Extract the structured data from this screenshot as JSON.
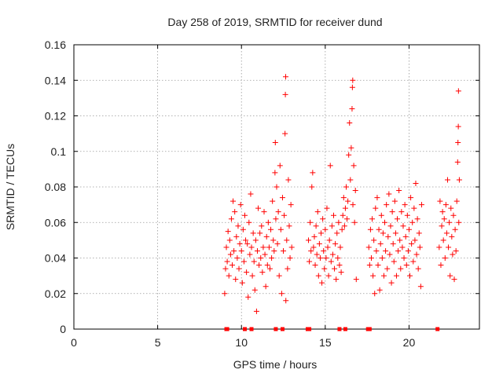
{
  "chart_data": {
    "type": "scatter",
    "title": "Day 258 of 2019, SRMTID for receiver dund",
    "xlabel": "GPS time / hours",
    "ylabel": "SRMTID / TECUs",
    "xlim": [
      0,
      24.2
    ],
    "ylim": [
      0,
      0.16
    ],
    "x_ticks": [
      0,
      5,
      10,
      15,
      20
    ],
    "x_tick_labels": [
      "0",
      "5",
      "10",
      "15",
      "20"
    ],
    "y_ticks": [
      0,
      0.02,
      0.04,
      0.06,
      0.08,
      0.1,
      0.12,
      0.14,
      0.16
    ],
    "y_tick_labels": [
      "0",
      "0.02",
      "0.04",
      "0.06",
      "0.08",
      "0.1",
      "0.12",
      "0.14",
      "0.16"
    ],
    "grid": true,
    "marker": "plus",
    "color": "#ff0000",
    "series": [
      {
        "name": "SRMTID",
        "points": [
          [
            9.0,
            0.02
          ],
          [
            9.05,
            0.034
          ],
          [
            9.1,
            0.046
          ],
          [
            9.15,
            0.038
          ],
          [
            9.2,
            0.055
          ],
          [
            9.25,
            0.03
          ],
          [
            9.3,
            0.05
          ],
          [
            9.35,
            0.042
          ],
          [
            9.4,
            0.062
          ],
          [
            9.45,
            0.036
          ],
          [
            9.5,
            0.072
          ],
          [
            9.55,
            0.044
          ],
          [
            9.6,
            0.066
          ],
          [
            9.65,
            0.028
          ],
          [
            9.7,
            0.052
          ],
          [
            9.75,
            0.04
          ],
          [
            9.8,
            0.058
          ],
          [
            9.85,
            0.034
          ],
          [
            9.9,
            0.048
          ],
          [
            9.95,
            0.07
          ],
          [
            10.0,
            0.044
          ],
          [
            10.05,
            0.026
          ],
          [
            10.1,
            0.056
          ],
          [
            10.15,
            0.038
          ],
          [
            10.2,
            0.064
          ],
          [
            10.25,
            0.05
          ],
          [
            10.3,
            0.032
          ],
          [
            10.35,
            0.048
          ],
          [
            10.4,
            0.018
          ],
          [
            10.45,
            0.06
          ],
          [
            10.5,
            0.042
          ],
          [
            10.55,
            0.076
          ],
          [
            10.6,
            0.046
          ],
          [
            10.65,
            0.03
          ],
          [
            10.7,
            0.054
          ],
          [
            10.75,
            0.038
          ],
          [
            10.8,
            0.022
          ],
          [
            10.85,
            0.05
          ],
          [
            10.9,
            0.01
          ],
          [
            10.95,
            0.044
          ],
          [
            11.0,
            0.068
          ],
          [
            11.05,
            0.036
          ],
          [
            11.1,
            0.054
          ],
          [
            11.15,
            0.04
          ],
          [
            11.2,
            0.058
          ],
          [
            11.25,
            0.032
          ],
          [
            11.3,
            0.046
          ],
          [
            11.35,
            0.066
          ],
          [
            11.4,
            0.042
          ],
          [
            11.45,
            0.024
          ],
          [
            11.5,
            0.052
          ],
          [
            11.55,
            0.036
          ],
          [
            11.6,
            0.06
          ],
          [
            11.65,
            0.046
          ],
          [
            11.7,
            0.034
          ],
          [
            11.75,
            0.056
          ],
          [
            11.8,
            0.04
          ],
          [
            11.85,
            0.072
          ],
          [
            11.9,
            0.05
          ],
          [
            11.95,
            0.044
          ],
          [
            12.0,
            0.088
          ],
          [
            12.02,
            0.105
          ],
          [
            12.05,
            0.062
          ],
          [
            12.1,
            0.08
          ],
          [
            12.15,
            0.048
          ],
          [
            12.2,
            0.066
          ],
          [
            12.25,
            0.03
          ],
          [
            12.3,
            0.092
          ],
          [
            12.35,
            0.056
          ],
          [
            12.4,
            0.02
          ],
          [
            12.45,
            0.074
          ],
          [
            12.5,
            0.044
          ],
          [
            12.55,
            0.064
          ],
          [
            12.6,
            0.11
          ],
          [
            12.62,
            0.132
          ],
          [
            12.64,
            0.142
          ],
          [
            12.65,
            0.016
          ],
          [
            12.7,
            0.05
          ],
          [
            12.75,
            0.034
          ],
          [
            12.8,
            0.084
          ],
          [
            12.85,
            0.058
          ],
          [
            12.9,
            0.04
          ],
          [
            12.95,
            0.07
          ],
          [
            13.0,
            0.046
          ],
          [
            14.0,
            0.05
          ],
          [
            14.05,
            0.038
          ],
          [
            14.1,
            0.06
          ],
          [
            14.15,
            0.044
          ],
          [
            14.2,
            0.08
          ],
          [
            14.25,
            0.088
          ],
          [
            14.3,
            0.046
          ],
          [
            14.35,
            0.052
          ],
          [
            14.4,
            0.036
          ],
          [
            14.45,
            0.058
          ],
          [
            14.5,
            0.042
          ],
          [
            14.55,
            0.066
          ],
          [
            14.6,
            0.03
          ],
          [
            14.65,
            0.048
          ],
          [
            14.7,
            0.04
          ],
          [
            14.75,
            0.054
          ],
          [
            14.8,
            0.026
          ],
          [
            14.85,
            0.062
          ],
          [
            14.9,
            0.044
          ],
          [
            14.95,
            0.034
          ],
          [
            15.0,
            0.056
          ],
          [
            15.05,
            0.04
          ],
          [
            15.1,
            0.068
          ],
          [
            15.15,
            0.046
          ],
          [
            15.2,
            0.03
          ],
          [
            15.25,
            0.05
          ],
          [
            15.3,
            0.092
          ],
          [
            15.35,
            0.038
          ],
          [
            15.4,
            0.058
          ],
          [
            15.45,
            0.042
          ],
          [
            15.5,
            0.064
          ],
          [
            15.55,
            0.034
          ],
          [
            15.6,
            0.048
          ],
          [
            15.65,
            0.028
          ],
          [
            15.7,
            0.054
          ],
          [
            15.75,
            0.04
          ],
          [
            15.8,
            0.06
          ],
          [
            15.85,
            0.036
          ],
          [
            15.9,
            0.046
          ],
          [
            15.95,
            0.032
          ],
          [
            16.0,
            0.056
          ],
          [
            16.05,
            0.064
          ],
          [
            16.1,
            0.074
          ],
          [
            16.15,
            0.058
          ],
          [
            16.2,
            0.068
          ],
          [
            16.25,
            0.08
          ],
          [
            16.3,
            0.062
          ],
          [
            16.35,
            0.072
          ],
          [
            16.4,
            0.098
          ],
          [
            16.45,
            0.116
          ],
          [
            16.5,
            0.084
          ],
          [
            16.55,
            0.102
          ],
          [
            16.6,
            0.124
          ],
          [
            16.62,
            0.136
          ],
          [
            16.64,
            0.14
          ],
          [
            16.65,
            0.07
          ],
          [
            16.7,
            0.092
          ],
          [
            16.75,
            0.06
          ],
          [
            16.8,
            0.078
          ],
          [
            16.85,
            0.028
          ],
          [
            17.6,
            0.046
          ],
          [
            17.65,
            0.036
          ],
          [
            17.7,
            0.056
          ],
          [
            17.75,
            0.04
          ],
          [
            17.8,
            0.062
          ],
          [
            17.85,
            0.03
          ],
          [
            17.9,
            0.05
          ],
          [
            17.95,
            0.02
          ],
          [
            18.0,
            0.068
          ],
          [
            18.05,
            0.044
          ],
          [
            18.1,
            0.074
          ],
          [
            18.15,
            0.036
          ],
          [
            18.2,
            0.056
          ],
          [
            18.25,
            0.022
          ],
          [
            18.3,
            0.048
          ],
          [
            18.35,
            0.064
          ],
          [
            18.4,
            0.04
          ],
          [
            18.45,
            0.054
          ],
          [
            18.5,
            0.03
          ],
          [
            18.55,
            0.06
          ],
          [
            18.6,
            0.044
          ],
          [
            18.65,
            0.07
          ],
          [
            18.7,
            0.034
          ],
          [
            18.75,
            0.052
          ],
          [
            18.8,
            0.076
          ],
          [
            18.85,
            0.042
          ],
          [
            18.9,
            0.058
          ],
          [
            18.95,
            0.026
          ],
          [
            19.0,
            0.066
          ],
          [
            19.05,
            0.048
          ],
          [
            19.1,
            0.038
          ],
          [
            19.15,
            0.072
          ],
          [
            19.2,
            0.054
          ],
          [
            19.25,
            0.03
          ],
          [
            19.3,
            0.062
          ],
          [
            19.35,
            0.044
          ],
          [
            19.4,
            0.078
          ],
          [
            19.45,
            0.05
          ],
          [
            19.5,
            0.034
          ],
          [
            19.55,
            0.066
          ],
          [
            19.6,
            0.046
          ],
          [
            19.65,
            0.058
          ],
          [
            19.7,
            0.04
          ],
          [
            19.75,
            0.07
          ],
          [
            19.8,
            0.052
          ],
          [
            19.85,
            0.036
          ],
          [
            19.9,
            0.064
          ],
          [
            19.95,
            0.044
          ],
          [
            20.0,
            0.056
          ],
          [
            20.05,
            0.03
          ],
          [
            20.1,
            0.074
          ],
          [
            20.15,
            0.048
          ],
          [
            20.2,
            0.06
          ],
          [
            20.25,
            0.038
          ],
          [
            20.3,
            0.068
          ],
          [
            20.35,
            0.05
          ],
          [
            20.4,
            0.082
          ],
          [
            20.45,
            0.042
          ],
          [
            20.5,
            0.062
          ],
          [
            20.55,
            0.034
          ],
          [
            20.6,
            0.054
          ],
          [
            20.65,
            0.046
          ],
          [
            20.7,
            0.024
          ],
          [
            20.75,
            0.07
          ],
          [
            21.8,
            0.046
          ],
          [
            21.85,
            0.072
          ],
          [
            21.9,
            0.036
          ],
          [
            21.95,
            0.058
          ],
          [
            22.0,
            0.066
          ],
          [
            22.05,
            0.05
          ],
          [
            22.1,
            0.062
          ],
          [
            22.15,
            0.04
          ],
          [
            22.2,
            0.07
          ],
          [
            22.25,
            0.054
          ],
          [
            22.3,
            0.084
          ],
          [
            22.35,
            0.046
          ],
          [
            22.4,
            0.06
          ],
          [
            22.45,
            0.03
          ],
          [
            22.5,
            0.068
          ],
          [
            22.55,
            0.052
          ],
          [
            22.6,
            0.042
          ],
          [
            22.65,
            0.064
          ],
          [
            22.7,
            0.028
          ],
          [
            22.75,
            0.056
          ],
          [
            22.8,
            0.044
          ],
          [
            22.85,
            0.072
          ],
          [
            22.9,
            0.094
          ],
          [
            22.92,
            0.105
          ],
          [
            22.94,
            0.114
          ],
          [
            22.95,
            0.134
          ],
          [
            22.97,
            0.06
          ],
          [
            23.0,
            0.084
          ]
        ]
      }
    ],
    "zero_markers_x": [
      9.1,
      9.15,
      10.2,
      10.6,
      12.05,
      12.45,
      13.95,
      14.05,
      15.85,
      16.2,
      17.55,
      17.65,
      21.7
    ]
  }
}
